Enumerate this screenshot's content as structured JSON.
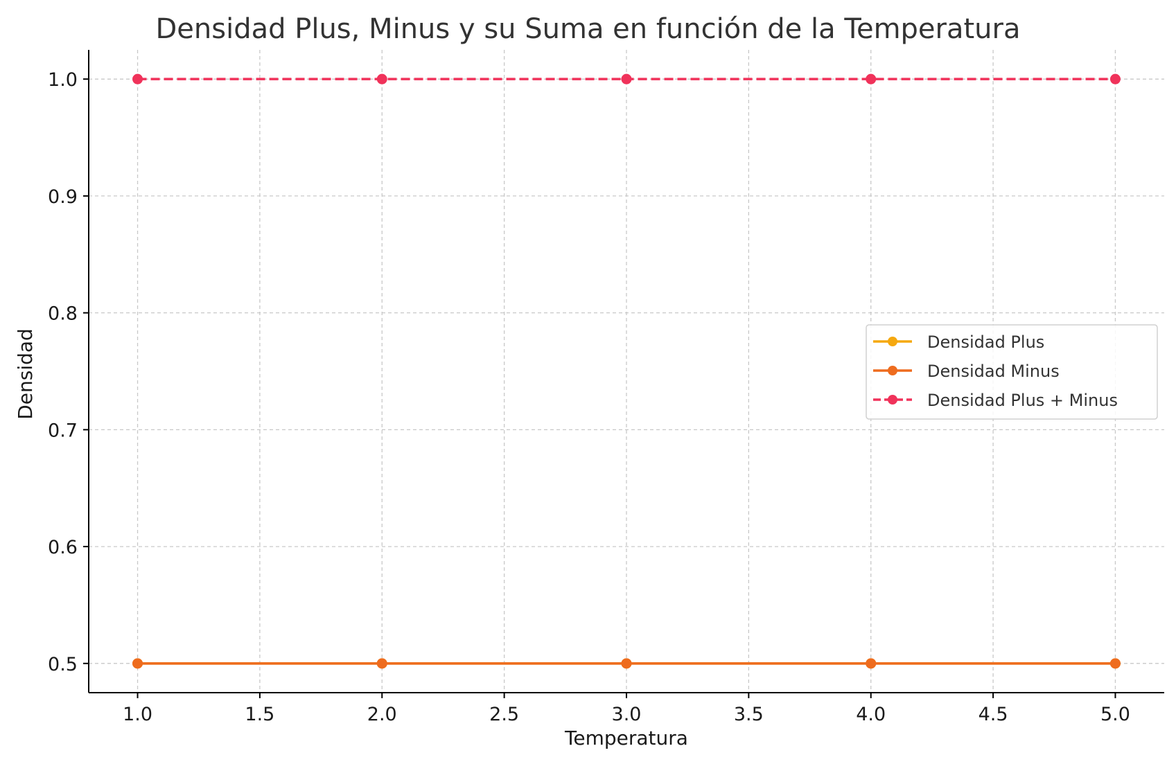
{
  "chart_data": {
    "type": "line",
    "title": "Densidad Plus, Minus y su Suma en función de la Temperatura",
    "xlabel": "Temperatura",
    "ylabel": "Densidad",
    "x": [
      1.0,
      2.0,
      3.0,
      4.0,
      5.0
    ],
    "xlim": [
      0.8,
      5.2
    ],
    "ylim": [
      0.475,
      1.025
    ],
    "x_ticks": [
      1.0,
      1.5,
      2.0,
      2.5,
      3.0,
      3.5,
      4.0,
      4.5,
      5.0
    ],
    "x_tick_labels": [
      "1.0",
      "1.5",
      "2.0",
      "2.5",
      "3.0",
      "3.5",
      "4.0",
      "4.5",
      "5.0"
    ],
    "y_ticks": [
      0.5,
      0.6,
      0.7,
      0.8,
      0.9,
      1.0
    ],
    "y_tick_labels": [
      "0.5",
      "0.6",
      "0.7",
      "0.8",
      "0.9",
      "1.0"
    ],
    "grid": true,
    "legend_position": "center-right",
    "series": [
      {
        "name": "Densidad Plus",
        "values": [
          0.5,
          0.5,
          0.5,
          0.5,
          0.5
        ],
        "color": "#f5a80f",
        "dashed": false,
        "marker": "circle"
      },
      {
        "name": "Densidad Minus",
        "values": [
          0.5,
          0.5,
          0.5,
          0.5,
          0.5
        ],
        "color": "#ee6c1e",
        "dashed": false,
        "marker": "circle"
      },
      {
        "name": "Densidad Plus + Minus",
        "values": [
          1.0,
          1.0,
          1.0,
          1.0,
          1.0
        ],
        "color": "#f0325a",
        "dashed": true,
        "marker": "circle"
      }
    ]
  }
}
